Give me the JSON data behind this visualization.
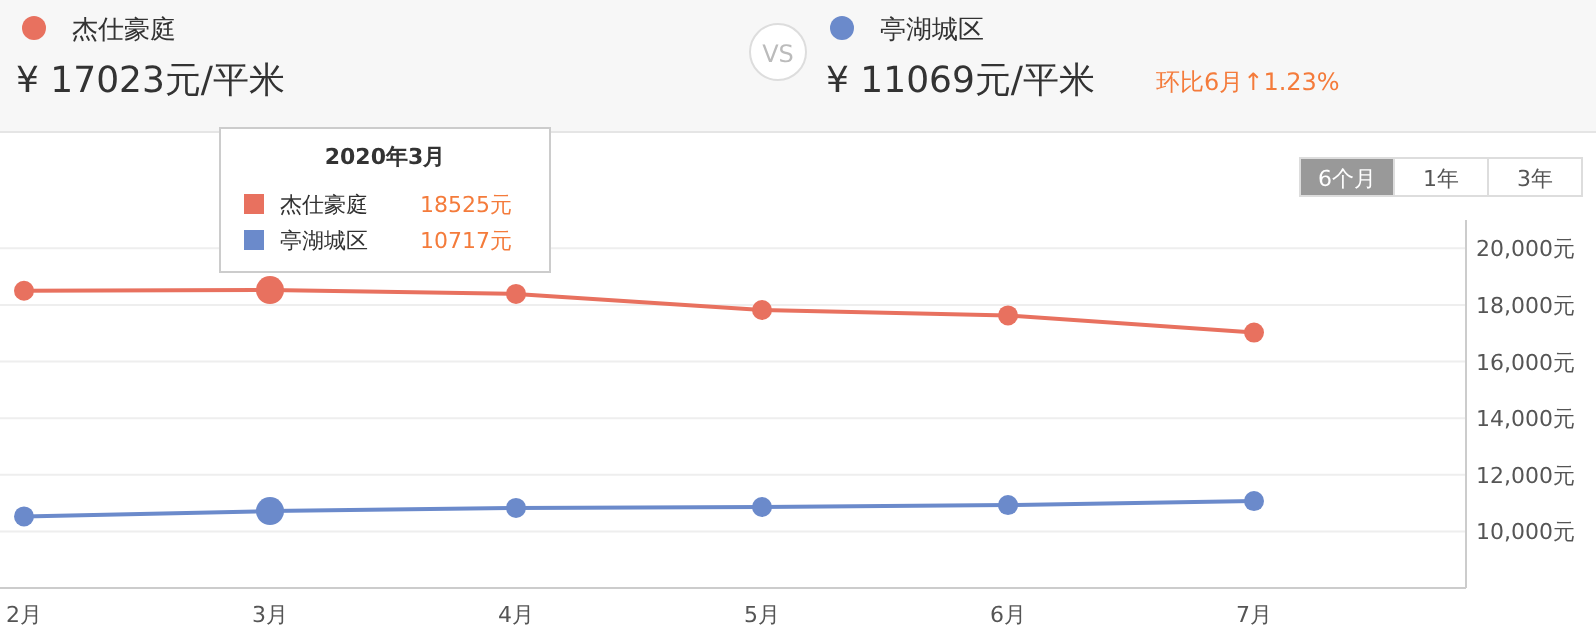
{
  "chart_data": {
    "type": "line",
    "categories": [
      "2月",
      "3月",
      "4月",
      "5月",
      "6月",
      "7月"
    ],
    "series": [
      {
        "name": "杰仕豪庭",
        "color": "#e8715f",
        "values": [
          18500,
          18525,
          18390,
          17820,
          17630,
          17023
        ]
      },
      {
        "name": "亭湖城区",
        "color": "#6b8acb",
        "values": [
          10530,
          10717,
          10830,
          10860,
          10930,
          11069
        ]
      }
    ],
    "ylim": [
      8000,
      21000
    ],
    "yticks": [
      {
        "value": 10000,
        "label": "10,000元"
      },
      {
        "value": 12000,
        "label": "12,000元"
      },
      {
        "value": 14000,
        "label": "14,000元"
      },
      {
        "value": 16000,
        "label": "16,000元"
      },
      {
        "value": 18000,
        "label": "18,000元"
      },
      {
        "value": 20000,
        "label": "20,000元"
      }
    ],
    "grid": "y",
    "legend": "top",
    "marker": "circle",
    "line_style": "solid",
    "annotations": [
      "¥ 17023元/平米",
      "¥ 11069元/平米",
      "环比6月↑1.23%",
      "VS",
      "6个月",
      "1年",
      "3年",
      "2020年3月",
      "18525元",
      "10717元"
    ]
  }
}
